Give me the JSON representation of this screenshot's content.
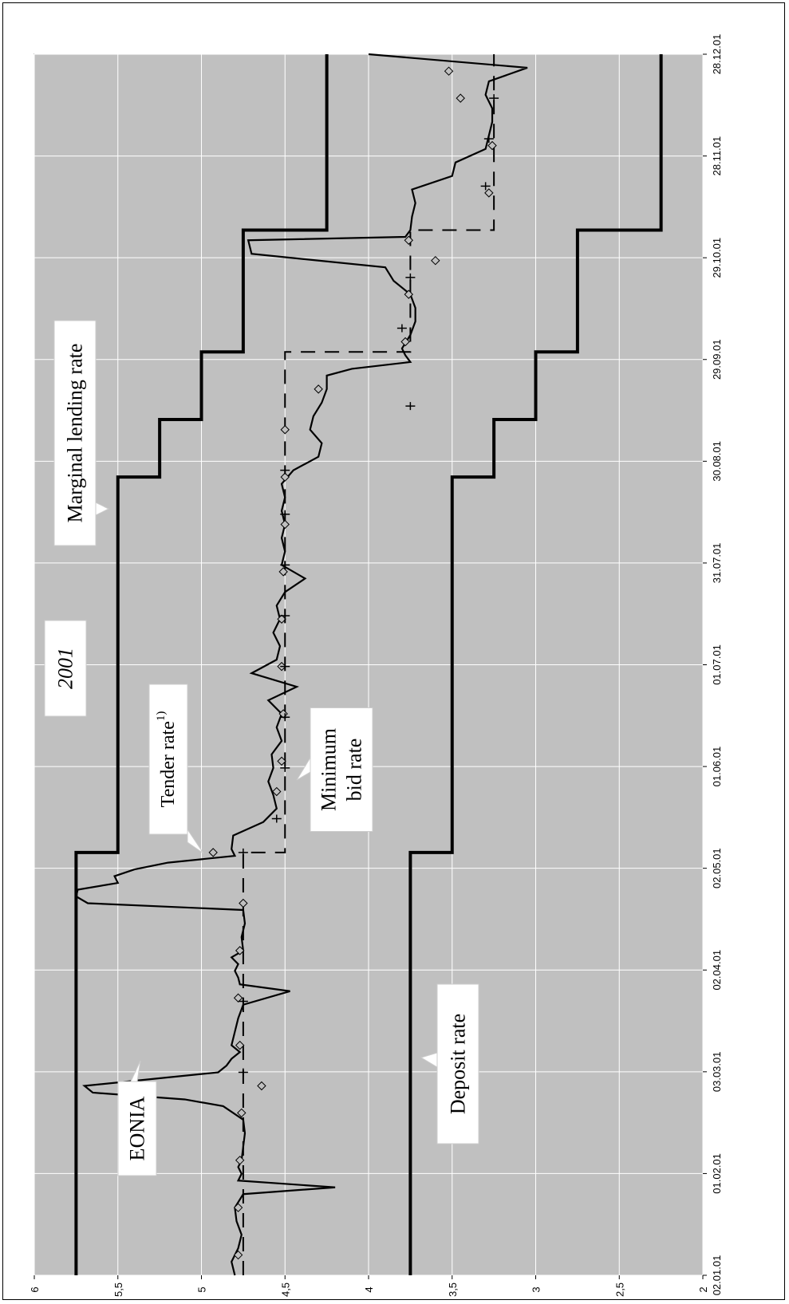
{
  "chart_data": {
    "type": "line",
    "rotated": true,
    "y_ticks": [
      "6",
      "5,5",
      "5",
      "4,5",
      "4",
      "3,5",
      "3",
      "2,5",
      "2"
    ],
    "ylim": [
      2,
      6
    ],
    "x_ticks": [
      "02.01.01",
      "01.02.01",
      "03.03.01",
      "02.04.01",
      "02.05.01",
      "01.06.01",
      "01.07.01",
      "31.07.01",
      "30.08.01",
      "29.09.01",
      "29.10.01",
      "28.11.01",
      "28.12.01"
    ],
    "grid": true,
    "annotations": {
      "year": "2001",
      "marginal": "Marginal lending rate",
      "tender": "Tender rate",
      "tender_sup": "1)",
      "minbid_1": "Minimum",
      "minbid_2": "bid rate",
      "eonia": "EONIA",
      "deposit": "Deposit rate"
    },
    "series": [
      {
        "name": "Marginal lending rate",
        "style": "step",
        "x": [
          0,
          125,
          125,
          236,
          236,
          253,
          253,
          273,
          273,
          309,
          309,
          361
        ],
        "values": [
          5.75,
          5.75,
          5.5,
          5.5,
          5.25,
          5.25,
          5.0,
          5.0,
          4.75,
          4.75,
          4.25,
          4.25
        ]
      },
      {
        "name": "Deposit rate",
        "style": "step",
        "x": [
          0,
          125,
          125,
          236,
          236,
          253,
          253,
          273,
          273,
          309,
          309,
          361
        ],
        "values": [
          3.75,
          3.75,
          3.5,
          3.5,
          3.25,
          3.25,
          3.0,
          3.0,
          2.75,
          2.75,
          2.25,
          2.25
        ]
      },
      {
        "name": "Minimum bid rate",
        "style": "dashed",
        "x": [
          0,
          125,
          125,
          273,
          273,
          309,
          309,
          361
        ],
        "values": [
          4.75,
          4.75,
          4.5,
          4.5,
          3.75,
          3.75,
          3.25,
          3.25
        ]
      },
      {
        "name": "EONIA",
        "style": "line",
        "x": [
          0,
          4,
          8,
          12,
          16,
          20,
          24,
          26,
          28,
          30,
          32,
          34,
          38,
          42,
          46,
          50,
          52,
          54,
          56,
          58,
          60,
          62,
          64,
          66,
          68,
          72,
          76,
          80,
          84,
          86,
          88,
          90,
          92,
          94,
          96,
          100,
          104,
          108,
          110,
          112,
          114,
          116,
          118,
          120,
          122,
          124,
          126,
          130,
          134,
          138,
          142,
          146,
          150,
          154,
          158,
          162,
          166,
          170,
          174,
          178,
          182,
          186,
          190,
          194,
          198,
          202,
          206,
          210,
          214,
          218,
          222,
          226,
          230,
          234,
          238,
          242,
          246,
          250,
          254,
          258,
          262,
          266,
          268,
          270,
          272,
          274,
          278,
          282,
          286,
          290,
          294,
          298,
          302,
          306,
          307,
          309,
          313,
          317,
          321,
          325,
          329,
          333,
          337,
          341,
          345,
          349,
          353,
          357,
          361
        ],
        "values": [
          4.8,
          4.82,
          4.78,
          4.76,
          4.79,
          4.8,
          4.75,
          4.2,
          4.78,
          4.76,
          4.78,
          4.76,
          4.75,
          4.74,
          4.75,
          4.87,
          5.1,
          5.65,
          5.7,
          5.3,
          4.9,
          4.85,
          4.82,
          4.77,
          4.82,
          4.8,
          4.78,
          4.75,
          4.47,
          4.77,
          4.78,
          4.8,
          4.78,
          4.82,
          4.75,
          4.76,
          4.74,
          4.75,
          5.68,
          5.75,
          5.74,
          5.5,
          5.52,
          5.4,
          5.2,
          4.8,
          4.82,
          4.81,
          4.63,
          4.55,
          4.57,
          4.6,
          4.57,
          4.58,
          4.52,
          4.55,
          4.52,
          4.6,
          4.43,
          4.7,
          4.55,
          4.53,
          4.57,
          4.53,
          4.55,
          4.5,
          4.38,
          4.52,
          4.5,
          4.52,
          4.5,
          4.52,
          4.5,
          4.52,
          4.45,
          4.3,
          4.28,
          4.35,
          4.33,
          4.28,
          4.25,
          4.25,
          4.1,
          3.75,
          3.78,
          3.8,
          3.75,
          3.72,
          3.72,
          3.75,
          3.85,
          3.9,
          4.7,
          4.72,
          3.78,
          3.75,
          3.74,
          3.72,
          3.74,
          3.5,
          3.48,
          3.3,
          3.28,
          3.26,
          3.26,
          3.3,
          3.28,
          3.05,
          4.0
        ]
      },
      {
        "name": "Tender rate",
        "style": "markers",
        "x": [
          6,
          20,
          34,
          48,
          56,
          68,
          82,
          96,
          110,
          125,
          143,
          152,
          166,
          180,
          194,
          208,
          222,
          236,
          250,
          262,
          276,
          290,
          300,
          306,
          320,
          334,
          348,
          356
        ],
        "values": [
          4.78,
          4.78,
          4.77,
          4.76,
          4.64,
          4.77,
          4.78,
          4.77,
          4.75,
          4.93,
          4.55,
          4.52,
          4.51,
          4.52,
          4.52,
          4.51,
          4.5,
          4.5,
          4.5,
          4.3,
          3.78,
          3.76,
          3.6,
          3.76,
          3.28,
          3.26,
          3.45,
          3.52
        ]
      },
      {
        "name": "Minimum bid rate markers",
        "style": "plus",
        "x": [
          60,
          81,
          125,
          135,
          150,
          165,
          180,
          195,
          210,
          225,
          238,
          257,
          280,
          295,
          322,
          336,
          348
        ],
        "values": [
          4.75,
          4.75,
          4.75,
          4.55,
          4.5,
          4.5,
          4.5,
          4.5,
          4.5,
          4.5,
          4.5,
          3.75,
          3.8,
          3.75,
          3.3,
          3.28,
          3.25
        ]
      }
    ]
  }
}
